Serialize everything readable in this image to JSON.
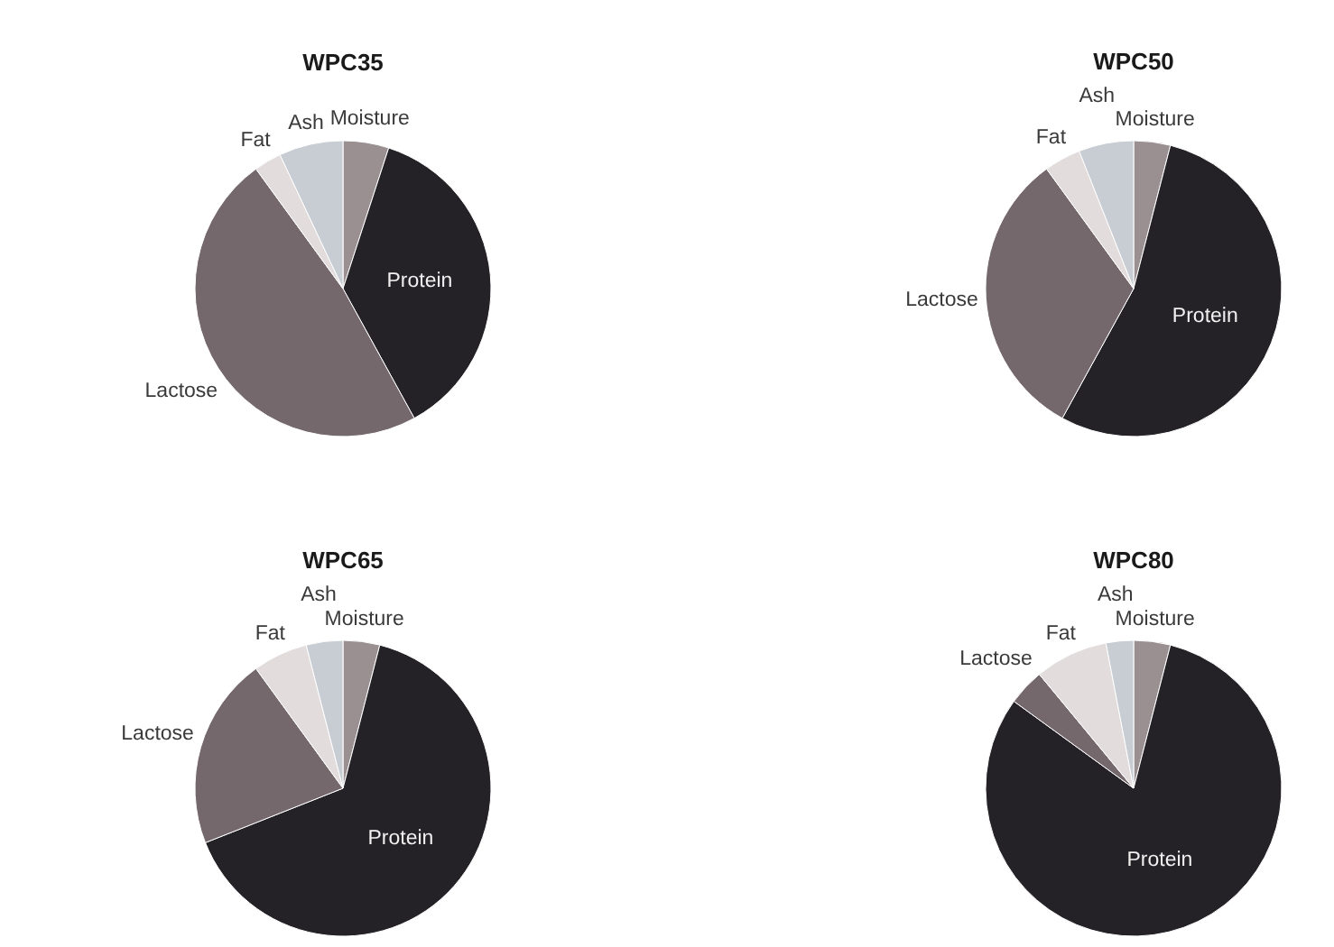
{
  "chart_data": [
    {
      "type": "pie",
      "title": "WPC35",
      "categories": [
        "Moisture",
        "Protein",
        "Lactose",
        "Fat",
        "Ash"
      ],
      "values": [
        5,
        37,
        48,
        3,
        7
      ],
      "colors": [
        "#9a9091",
        "#242226",
        "#74686d",
        "#e2dcdc",
        "#c8cdd4"
      ]
    },
    {
      "type": "pie",
      "title": "WPC50",
      "categories": [
        "Moisture",
        "Protein",
        "Lactose",
        "Fat",
        "Ash"
      ],
      "values": [
        4,
        54,
        32,
        4,
        6
      ],
      "colors": [
        "#9a9091",
        "#242226",
        "#74686d",
        "#e2dcdc",
        "#c8cdd4"
      ]
    },
    {
      "type": "pie",
      "title": "WPC65",
      "categories": [
        "Moisture",
        "Protein",
        "Lactose",
        "Fat",
        "Ash"
      ],
      "values": [
        4,
        65,
        21,
        6,
        4
      ],
      "colors": [
        "#9a9091",
        "#242226",
        "#74686d",
        "#e2dcdc",
        "#c8cdd4"
      ]
    },
    {
      "type": "pie",
      "title": "WPC80",
      "categories": [
        "Moisture",
        "Protein",
        "Lactose",
        "Fat",
        "Ash"
      ],
      "values": [
        4,
        81,
        4,
        8,
        3
      ],
      "colors": [
        "#9a9091",
        "#242226",
        "#74686d",
        "#e2dcdc",
        "#c8cdd4"
      ]
    }
  ]
}
